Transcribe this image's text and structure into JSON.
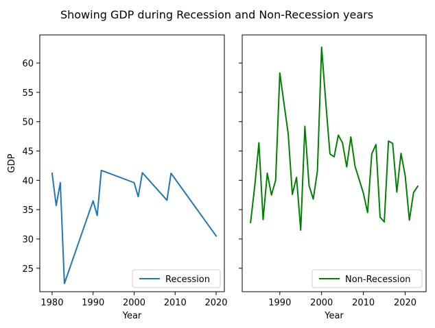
{
  "figure": {
    "title": "Showing GDP during Recession and Non-Recession years"
  },
  "chart_data": [
    {
      "type": "line",
      "xlabel": "Year",
      "ylabel": "GDP",
      "xlim": [
        1977,
        2022
      ],
      "ylim": [
        21,
        64.8
      ],
      "xticks": [
        1980,
        1990,
        2000,
        2010,
        2020
      ],
      "yticks": [
        25,
        30,
        35,
        40,
        45,
        50,
        55,
        60
      ],
      "legend_loc": "lower right",
      "series": [
        {
          "name": "Recession",
          "color": "#1f77b4",
          "x": [
            1980,
            1981,
            1982,
            1983,
            1990,
            1991,
            1992,
            2000,
            2001,
            2002,
            2008,
            2009,
            2020
          ],
          "y": [
            41.2,
            35.7,
            39.6,
            22.4,
            36.5,
            34.0,
            41.7,
            39.6,
            37.2,
            41.3,
            36.6,
            41.2,
            30.5
          ]
        }
      ]
    },
    {
      "type": "line",
      "xlabel": "Year",
      "ylabel": "",
      "xlim": [
        1981,
        2025
      ],
      "ylim": [
        21,
        64.8
      ],
      "xticks": [
        1990,
        2000,
        2010,
        2020
      ],
      "yticks": [
        25,
        30,
        35,
        40,
        45,
        50,
        55,
        60
      ],
      "legend_loc": "lower right",
      "series": [
        {
          "name": "Non-Recession",
          "color": "#008000",
          "x": [
            1983,
            1984,
            1985,
            1986,
            1987,
            1988,
            1989,
            1990,
            1991,
            1992,
            1993,
            1994,
            1995,
            1996,
            1997,
            1998,
            1999,
            2000,
            2001,
            2002,
            2003,
            2004,
            2005,
            2006,
            2007,
            2008,
            2009,
            2010,
            2011,
            2012,
            2013,
            2014,
            2015,
            2016,
            2017,
            2018,
            2019,
            2020,
            2021,
            2022,
            2023
          ],
          "y": [
            32.8,
            39.0,
            46.4,
            33.3,
            41.2,
            37.5,
            40.0,
            58.3,
            53.1,
            48.0,
            37.6,
            40.5,
            31.5,
            49.2,
            39.1,
            36.8,
            41.6,
            62.7,
            53.3,
            44.5,
            44.0,
            47.7,
            46.4,
            42.3,
            47.4,
            42.4,
            40.1,
            37.8,
            34.5,
            44.5,
            46.1,
            33.7,
            32.9,
            46.7,
            46.3,
            38.0,
            44.6,
            40.8,
            33.2,
            37.9,
            39.0
          ]
        }
      ]
    }
  ]
}
